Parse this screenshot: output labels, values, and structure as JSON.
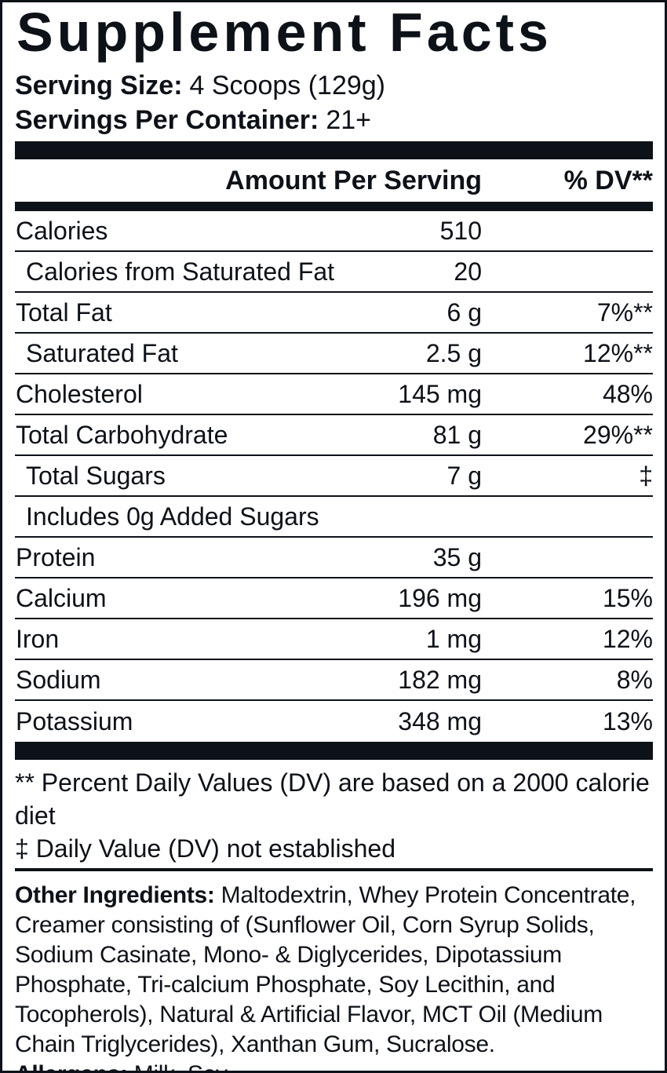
{
  "title": "Supplement Facts",
  "serving_info": {
    "serving_size_label": "Serving Size:",
    "serving_size_value": "4 Scoops (129g)",
    "servings_per_container_label": "Servings Per Container:",
    "servings_per_container_value": "21+"
  },
  "table": {
    "header": {
      "amount": "Amount Per Serving",
      "dv": "% DV**"
    },
    "rows": [
      {
        "name": "Calories",
        "amount": "510",
        "dv": "",
        "indent": false
      },
      {
        "name": "Calories from Saturated Fat",
        "amount": "20",
        "dv": "",
        "indent": true
      },
      {
        "name": "Total Fat",
        "amount": "6 g",
        "dv": "7%**",
        "indent": false
      },
      {
        "name": "Saturated Fat",
        "amount": "2.5 g",
        "dv": "12%**",
        "indent": true
      },
      {
        "name": "Cholesterol",
        "amount": "145 mg",
        "dv": "48%",
        "indent": false
      },
      {
        "name": "Total Carbohydrate",
        "amount": "81 g",
        "dv": "29%**",
        "indent": false
      },
      {
        "name": "Total Sugars",
        "amount": "7 g",
        "dv": "‡",
        "indent": true
      },
      {
        "name": "Includes 0g Added Sugars",
        "amount": "",
        "dv": "",
        "indent": true
      },
      {
        "name": "Protein",
        "amount": "35 g",
        "dv": "",
        "indent": false
      },
      {
        "name": "Calcium",
        "amount": "196 mg",
        "dv": "15%",
        "indent": false
      },
      {
        "name": "Iron",
        "amount": "1 mg",
        "dv": "12%",
        "indent": false
      },
      {
        "name": "Sodium",
        "amount": "182 mg",
        "dv": "8%",
        "indent": false
      },
      {
        "name": "Potassium",
        "amount": "348 mg",
        "dv": "13%",
        "indent": false
      }
    ]
  },
  "footnotes": [
    "** Percent Daily Values (DV) are based on a 2000 calorie diet",
    "‡ Daily Value (DV) not established"
  ],
  "other_ingredients": {
    "label": "Other Ingredients:",
    "text": " Maltodextrin, Whey Protein Concentrate, Creamer consisting of (Sunflower Oil, Corn Syrup Solids, Sodium Casinate, Mono- & Diglycerides, Dipotassium Phosphate, Tri-calcium Phosphate, Soy Lecithin, and Tocopherols), Natural & Artificial Flavor, MCT Oil (Medium Chain Triglycerides), Xanthan Gum, Sucralose."
  },
  "allergens": {
    "label": "Allergens:",
    "text": " Milk, Soy."
  },
  "colors": {
    "ink": "#0d1118",
    "background": "#ffffff"
  }
}
